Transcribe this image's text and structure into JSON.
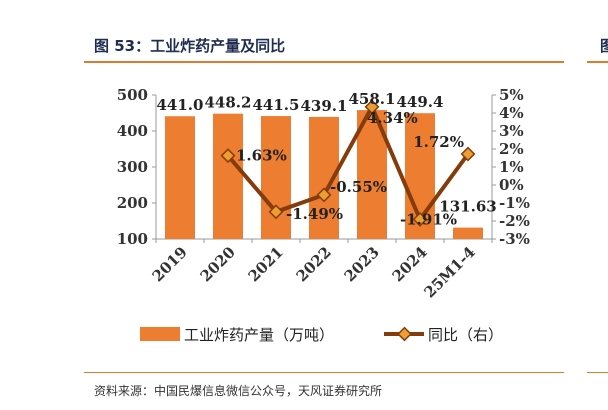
{
  "figure": {
    "title": "图 53：工业炸药产量及同比",
    "source": "资料来源：中国民爆信息微信公众号，天风证券研究所",
    "edge_glyph": "图"
  },
  "colors": {
    "bar": "#ED7D31",
    "line": "#843C0C",
    "marker_fill": "#ED9E31",
    "rule": "#E07A2F"
  },
  "chart_data": {
    "type": "bar",
    "categories": [
      "2019",
      "2020",
      "2021",
      "2022",
      "2023",
      "2024",
      "25M1-4"
    ],
    "series": [
      {
        "name": "工业炸药产量（万吨）",
        "type": "bar",
        "axis": "left",
        "values": [
          441.0,
          448.2,
          441.5,
          439.1,
          458.1,
          449.4,
          131.63
        ],
        "labels": [
          "441.0",
          "448.2",
          "441.5",
          "439.1",
          "458.1",
          "449.4",
          "131.63"
        ]
      },
      {
        "name": "同比（右）",
        "type": "line",
        "axis": "right",
        "values": [
          null,
          1.63,
          -1.49,
          -0.55,
          4.34,
          -1.91,
          1.72
        ],
        "labels": [
          "",
          "1.63%",
          "-1.49%",
          "-0.55%",
          "4.34%",
          "-1.91%",
          "1.72%"
        ]
      }
    ],
    "y_left": {
      "min": 100,
      "max": 500,
      "ticks": [
        "100",
        "200",
        "300",
        "400",
        "500"
      ]
    },
    "y_right": {
      "min": -3,
      "max": 5,
      "ticks": [
        "-3%",
        "-2%",
        "-1%",
        "0%",
        "1%",
        "2%",
        "3%",
        "4%",
        "5%"
      ]
    },
    "grid": false,
    "legend_position": "bottom"
  }
}
